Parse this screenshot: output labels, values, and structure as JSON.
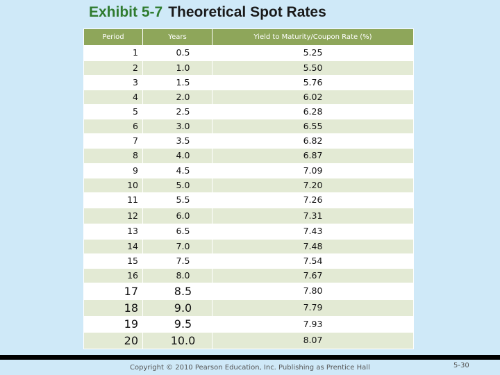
{
  "title": {
    "exhibit": "Exhibit 5-7",
    "name": "Theoretical Spot Rates"
  },
  "table": {
    "headers": {
      "period": "Period",
      "years": "Years",
      "yield": "Yield to Maturity/Coupon Rate (%)"
    },
    "rows": [
      {
        "period": "1",
        "years": "0.5",
        "yield": "5.25"
      },
      {
        "period": "2",
        "years": "1.0",
        "yield": "5.50"
      },
      {
        "period": "3",
        "years": "1.5",
        "yield": "5.76"
      },
      {
        "period": "4",
        "years": "2.0",
        "yield": "6.02"
      },
      {
        "period": "5",
        "years": "2.5",
        "yield": "6.28"
      },
      {
        "period": "6",
        "years": "3.0",
        "yield": "6.55"
      },
      {
        "period": "7",
        "years": "3.5",
        "yield": "6.82"
      },
      {
        "period": "8",
        "years": "4.0",
        "yield": "6.87"
      },
      {
        "period": "9",
        "years": "4.5",
        "yield": "7.09"
      },
      {
        "period": "10",
        "years": "5.0",
        "yield": "7.20"
      },
      {
        "period": "11",
        "years": "5.5",
        "yield": "7.26"
      },
      {
        "period": "12",
        "years": "6.0",
        "yield": "7.31"
      },
      {
        "period": "13",
        "years": "6.5",
        "yield": "7.43"
      },
      {
        "period": "14",
        "years": "7.0",
        "yield": "7.48"
      },
      {
        "period": "15",
        "years": "7.5",
        "yield": "7.54"
      },
      {
        "period": "16",
        "years": "8.0",
        "yield": "7.67"
      },
      {
        "period": "17",
        "years": "8.5",
        "yield": "7.80"
      },
      {
        "period": "18",
        "years": "9.0",
        "yield": "7.79"
      },
      {
        "period": "19",
        "years": "9.5",
        "yield": "7.93"
      },
      {
        "period": "20",
        "years": "10.0",
        "yield": "8.07"
      }
    ]
  },
  "footer": {
    "copyright": "Copyright © 2010 Pearson Education, Inc. Publishing as Prentice Hall",
    "slide_number": "5-30"
  }
}
